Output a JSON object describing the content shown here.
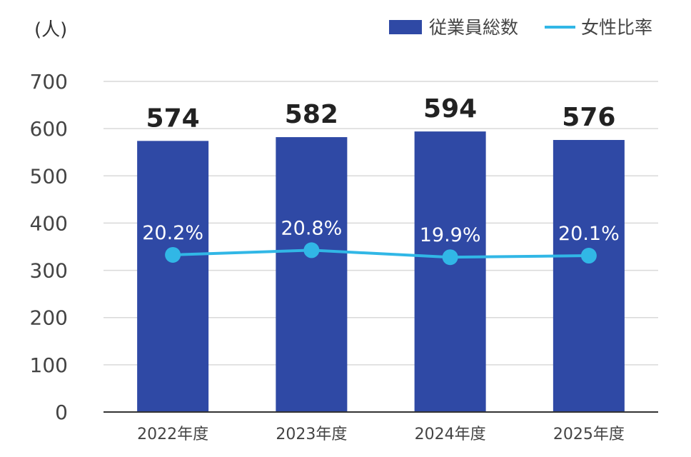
{
  "chart_data": {
    "type": "bar",
    "unit_label": "(人)",
    "categories": [
      "2022年度",
      "2023年度",
      "2024年度",
      "2025年度"
    ],
    "ylim": [
      0,
      700
    ],
    "yticks": [
      0,
      100,
      200,
      300,
      400,
      500,
      600,
      700
    ],
    "grid": true,
    "legend_position": "top-right",
    "series": [
      {
        "name": "従業員総数",
        "type": "bar",
        "values": [
          574,
          582,
          594,
          576
        ],
        "data_labels": [
          "574",
          "582",
          "594",
          "576"
        ],
        "color": "#2F49A5"
      },
      {
        "name": "女性比率",
        "type": "line",
        "values": [
          20.2,
          20.8,
          19.9,
          20.1
        ],
        "data_labels": [
          "20.2%",
          "20.8%",
          "19.9%",
          "20.1%"
        ],
        "color": "#31B7E6"
      }
    ]
  }
}
